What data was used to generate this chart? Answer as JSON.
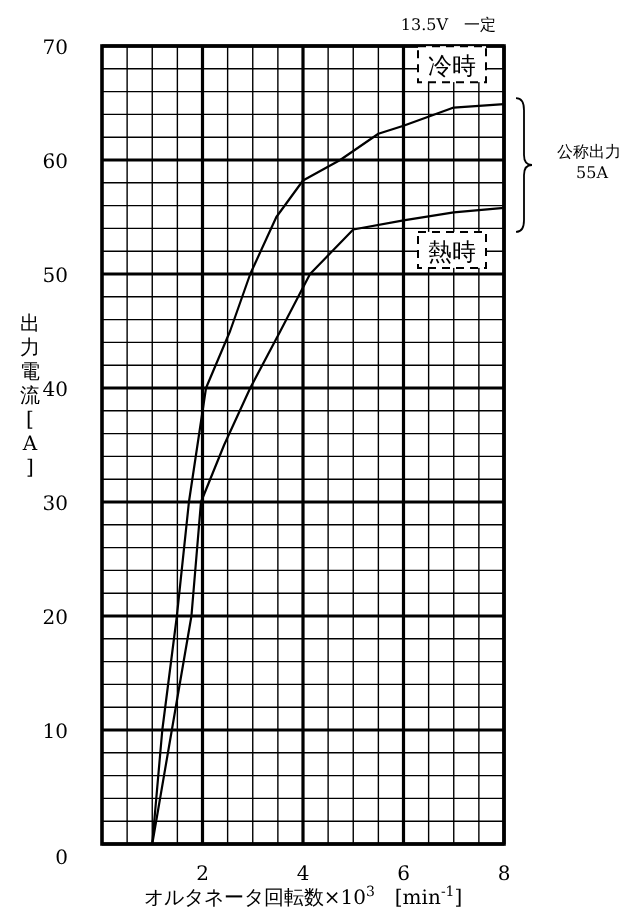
{
  "chart_data": {
    "type": "line",
    "xlabel": "オルタネータ回転数×10$^{3}$　[min$^{-1}$]",
    "ylabel": "出力電流[A]",
    "annotations": [
      "13.5V　一定",
      "公称出力 55A"
    ],
    "xlim": [
      0,
      8
    ],
    "xticks": [
      2,
      4,
      6,
      8
    ],
    "ylim": [
      0,
      70
    ],
    "yticks": [
      0,
      10,
      20,
      30,
      40,
      50,
      60,
      70
    ],
    "grid": true,
    "marker": "none",
    "line_style": "solid",
    "series": [
      {
        "name": "冷時",
        "color": "#000000",
        "x": [
          1.0,
          1.2,
          1.49,
          1.73,
          2.07,
          2.55,
          2.95,
          3.47,
          4.0,
          4.74,
          5.5,
          6,
          7,
          8
        ],
        "values": [
          0,
          10,
          20,
          30,
          40,
          45,
          50,
          55,
          58.2,
          60,
          62.3,
          63,
          64.6,
          64.9
        ]
      },
      {
        "name": "熱時",
        "color": "#000000",
        "x": [
          1.0,
          1.39,
          1.78,
          1.97,
          2.43,
          2.95,
          3.55,
          4.14,
          5,
          6,
          7,
          8
        ],
        "values": [
          0,
          10,
          20,
          30,
          35,
          40,
          45,
          50,
          53.9,
          54.7,
          55.4,
          55.8
        ]
      }
    ]
  }
}
